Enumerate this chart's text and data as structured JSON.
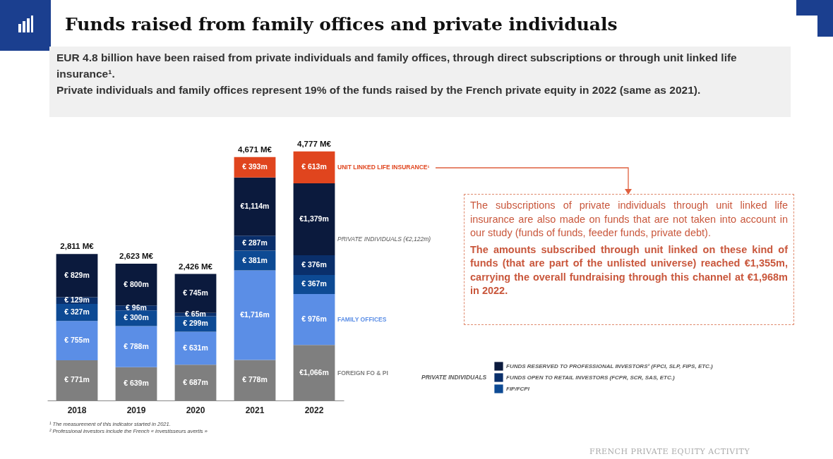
{
  "chart_data": {
    "type": "bar",
    "title": "Funds raised from family offices and private individuals",
    "subtitle": "EUR 4.8 billion have been raised from private individuals and family offices, through direct subscriptions or through unit linked life insurance¹.\nPrivate individuals and family offices represent 19% of the funds raised by the French private equity in 2022 (same as 2021).",
    "categories": [
      "2018",
      "2019",
      "2020",
      "2021",
      "2022"
    ],
    "stacked": true,
    "legend": "bottom right",
    "legend_title": "PRIVATE INDIVIDUALS",
    "series": [
      {
        "name": "FOREIGN FO & PI",
        "color": "#7f7f7f",
        "values": [
          771,
          639,
          687,
          778,
          1066
        ],
        "value_labels": [
          "€ 771m",
          "€ 639m",
          "€ 687m",
          "€ 778m",
          "€1,066m"
        ]
      },
      {
        "name": "FAMILY OFFICES",
        "color": "#5b8ee6",
        "values": [
          755,
          788,
          631,
          1716,
          976
        ],
        "value_labels": [
          "€ 755m",
          "€ 788m",
          "€ 631m",
          "€1,716m",
          "€ 976m"
        ]
      },
      {
        "name": "FIP/FCPI",
        "color": "#0d4a94",
        "values": [
          327,
          300,
          299,
          381,
          367
        ],
        "value_labels": [
          "€ 327m",
          "€ 300m",
          "€ 299m",
          "€ 381m",
          "€ 367m"
        ]
      },
      {
        "name": "FUNDS OPEN TO RETAIL INVESTORS (FCPR, SCR, SAS, ETC.)",
        "color": "#0a2f6b",
        "values": [
          129,
          96,
          65,
          287,
          376
        ],
        "value_labels": [
          "€ 129m",
          "€ 96m",
          "€ 65m",
          "€ 287m",
          "€ 376m"
        ]
      },
      {
        "name": "FUNDS RESERVED TO PROFESSIONAL INVESTORS² (FPCI, SLP, FIPS, ETC.)",
        "color": "#0b1a3d",
        "values": [
          829,
          800,
          745,
          1114,
          1379
        ],
        "value_labels": [
          "€ 829m",
          "€ 800m",
          "€ 745m",
          "€1,114m",
          "€1,379m"
        ]
      },
      {
        "name": "UNIT LINKED LIFE INSURANCE¹",
        "color": "#e0451e",
        "values": [
          null,
          null,
          null,
          393,
          613
        ],
        "value_labels": [
          null,
          null,
          null,
          "€ 393m",
          "€ 613m"
        ]
      }
    ],
    "totals": [
      "2,811 M€",
      "2,623 M€",
      "2,426 M€",
      "4,671 M€",
      "4,777 M€"
    ],
    "annotations": [
      "PRIVATE INDIVIDUALS (€2,122m)",
      "The subscriptions of private individuals through unit linked life insurance are also made on funds that are not taken into account in our study (funds of funds, feeder funds, private debt).",
      "The amounts subscribed through unit linked on these kind of funds (that are part of the unlisted universe) reached €1,355m, carrying the overall fundraising through this channel at €1,968m in 2022.",
      "¹ The measurement of this indicator started in 2021.",
      "² Professional investors include the French « investisseurs avertis »",
      "FRENCH PRIVATE EQUITY ACTIVITY"
    ]
  }
}
